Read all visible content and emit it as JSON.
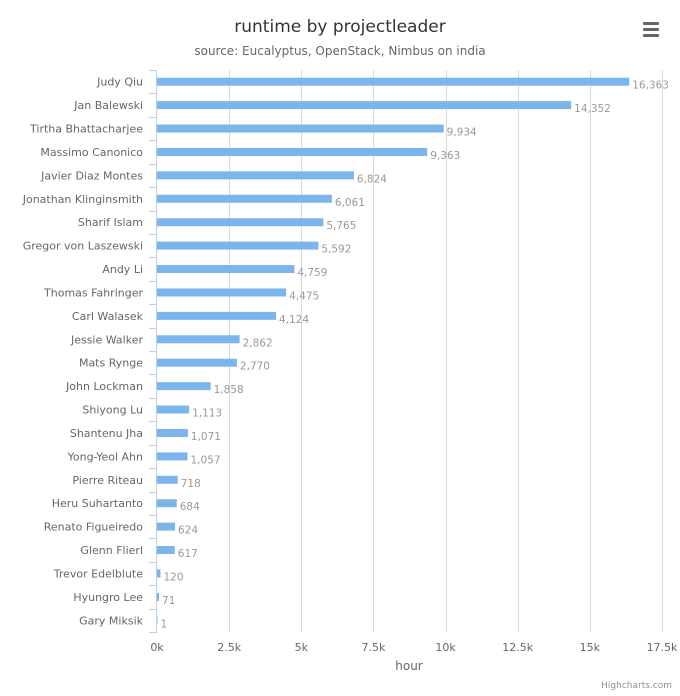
{
  "chart_data": {
    "type": "bar",
    "orientation": "horizontal",
    "title": "runtime by projectleader",
    "subtitle": "source: Eucalyptus, OpenStack, Nimbus on india",
    "xlabel": "hour",
    "ylabel": "",
    "categories": [
      "Judy Qiu",
      "Jan Balewski",
      "Tirtha Bhattacharjee",
      "Massimo Canonico",
      "Javier Diaz Montes",
      "Jonathan Klinginsmith",
      "Sharif Islam",
      "Gregor von Laszewski",
      "Andy Li",
      "Thomas Fahringer",
      "Carl Walasek",
      "Jessie Walker",
      "Mats Rynge",
      "John Lockman",
      "Shiyong Lu",
      "Shantenu Jha",
      "Yong-Yeol Ahn",
      "Pierre Riteau",
      "Heru Suhartanto",
      "Renato Figueiredo",
      "Glenn Flierl",
      "Trevor Edelblute",
      "Hyungro Lee",
      "Gary Miksik"
    ],
    "values": [
      16363,
      14352,
      9934,
      9363,
      6824,
      6061,
      5765,
      5592,
      4759,
      4475,
      4124,
      2862,
      2770,
      1858,
      1113,
      1071,
      1057,
      718,
      684,
      624,
      617,
      120,
      71,
      1
    ],
    "value_labels": [
      "16,363",
      "14,352",
      "9,934",
      "9,363",
      "6,824",
      "6,061",
      "5,765",
      "5,592",
      "4,759",
      "4,475",
      "4,124",
      "2,862",
      "2,770",
      "1,858",
      "1,113",
      "1,071",
      "1,057",
      "718",
      "684",
      "624",
      "617",
      "120",
      "71",
      "1"
    ],
    "xlim": [
      0,
      17500
    ],
    "ticks": [
      0,
      2500,
      5000,
      7500,
      10000,
      12500,
      15000,
      17500
    ],
    "tick_labels": [
      "0k",
      "2.5k",
      "5k",
      "7.5k",
      "10k",
      "12.5k",
      "15k",
      "17.5k"
    ],
    "grid": true,
    "legend": "none",
    "colors": {
      "bar": "#7cb5ec",
      "grid": "#d8d8d8",
      "title": "#333333",
      "axis_text": "#666666",
      "data_label": "#999999"
    }
  },
  "ui": {
    "menu_icon": "hamburger-menu-icon",
    "credits": "Highcharts.com"
  }
}
